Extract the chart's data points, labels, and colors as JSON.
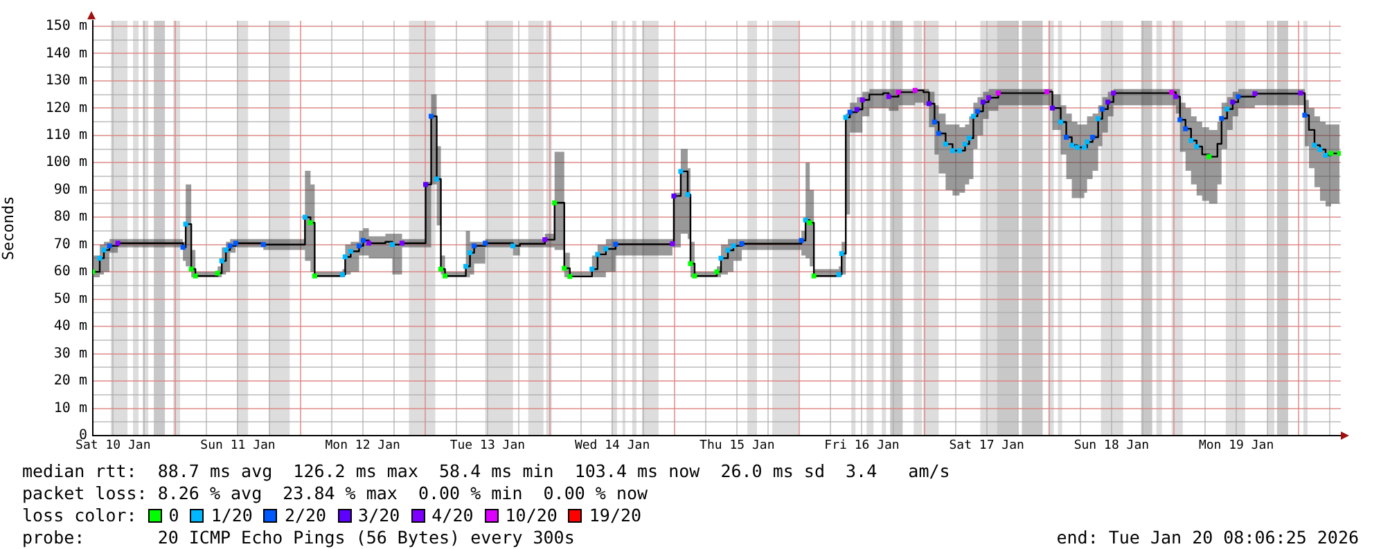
{
  "chart_data": {
    "type": "step",
    "ylabel": "Seconds",
    "legend_title": "loss color:",
    "legend": "bottom",
    "grid": true,
    "xlim": [
      "2026-01-10T08:06",
      "2026-01-20T08:06"
    ],
    "ylim": [
      0,
      152
    ],
    "yticks": [
      0,
      {
        "value": 5,
        "label": null
      },
      {
        "value": 10,
        "label": "10 m"
      },
      {
        "value": 15,
        "label": null
      },
      {
        "value": 20,
        "label": "20 m"
      },
      {
        "value": 25,
        "label": null
      },
      {
        "value": 30,
        "label": "30 m"
      },
      {
        "value": 35,
        "label": null
      },
      {
        "value": 40,
        "label": "40 m"
      },
      {
        "value": 45,
        "label": null
      },
      {
        "value": 50,
        "label": "50 m"
      },
      {
        "value": 55,
        "label": null
      },
      {
        "value": 60,
        "label": "60 m"
      },
      {
        "value": 65,
        "label": null
      },
      {
        "value": 70,
        "label": "70 m"
      },
      {
        "value": 75,
        "label": null
      },
      {
        "value": 80,
        "label": "80 m"
      },
      {
        "value": 85,
        "label": null
      },
      {
        "value": 90,
        "label": "90 m"
      },
      {
        "value": 95,
        "label": null
      },
      {
        "value": 100,
        "label": "100 m"
      },
      {
        "value": 105,
        "label": null
      },
      {
        "value": 110,
        "label": "110 m"
      },
      {
        "value": 115,
        "label": null
      },
      {
        "value": 120,
        "label": "120 m"
      },
      {
        "value": 125,
        "label": null
      },
      {
        "value": 130,
        "label": "130 m"
      },
      {
        "value": 135,
        "label": null
      },
      {
        "value": 140,
        "label": "140 m"
      },
      {
        "value": 145,
        "label": null
      },
      {
        "value": 150,
        "label": "150 m"
      }
    ],
    "xticks": [
      {
        "value": "2026-01-10T12:00",
        "label": "Sat 10 Jan"
      },
      {
        "value": "2026-01-10T18:00",
        "label": null
      },
      {
        "value": "2026-01-11T00:00",
        "label": null
      },
      {
        "value": "2026-01-11T06:00",
        "label": null
      },
      {
        "value": "2026-01-11T12:00",
        "label": "Sun 11 Jan"
      },
      {
        "value": "2026-01-11T18:00",
        "label": null
      },
      {
        "value": "2026-01-12T00:00",
        "label": null
      },
      {
        "value": "2026-01-12T06:00",
        "label": null
      },
      {
        "value": "2026-01-12T12:00",
        "label": "Mon 12 Jan"
      },
      {
        "value": "2026-01-12T18:00",
        "label": null
      },
      {
        "value": "2026-01-13T00:00",
        "label": null
      },
      {
        "value": "2026-01-13T06:00",
        "label": null
      },
      {
        "value": "2026-01-13T12:00",
        "label": "Tue 13 Jan"
      },
      {
        "value": "2026-01-13T18:00",
        "label": null
      },
      {
        "value": "2026-01-14T00:00",
        "label": null
      },
      {
        "value": "2026-01-14T06:00",
        "label": null
      },
      {
        "value": "2026-01-14T12:00",
        "label": "Wed 14 Jan"
      },
      {
        "value": "2026-01-14T18:00",
        "label": null
      },
      {
        "value": "2026-01-15T00:00",
        "label": null
      },
      {
        "value": "2026-01-15T06:00",
        "label": null
      },
      {
        "value": "2026-01-15T12:00",
        "label": "Thu 15 Jan"
      },
      {
        "value": "2026-01-15T18:00",
        "label": null
      },
      {
        "value": "2026-01-16T00:00",
        "label": null
      },
      {
        "value": "2026-01-16T06:00",
        "label": null
      },
      {
        "value": "2026-01-16T12:00",
        "label": "Fri 16 Jan"
      },
      {
        "value": "2026-01-16T18:00",
        "label": null
      },
      {
        "value": "2026-01-17T00:00",
        "label": null
      },
      {
        "value": "2026-01-17T06:00",
        "label": null
      },
      {
        "value": "2026-01-17T12:00",
        "label": "Sat 17 Jan"
      },
      {
        "value": "2026-01-17T18:00",
        "label": null
      },
      {
        "value": "2026-01-18T00:00",
        "label": null
      },
      {
        "value": "2026-01-18T06:00",
        "label": null
      },
      {
        "value": "2026-01-18T12:00",
        "label": "Sun 18 Jan"
      },
      {
        "value": "2026-01-18T18:00",
        "label": null
      },
      {
        "value": "2026-01-19T00:00",
        "label": null
      },
      {
        "value": "2026-01-19T06:00",
        "label": null
      },
      {
        "value": "2026-01-19T12:00",
        "label": "Mon 19 Jan"
      },
      {
        "value": "2026-01-19T18:00",
        "label": null
      },
      {
        "value": "2026-01-20T00:00",
        "label": null
      },
      {
        "value": "2026-01-20T06:00",
        "label": null
      }
    ],
    "x": [
      "2026-01-10T08:06",
      "2026-01-10T09:26",
      "2026-01-10T10:14",
      "2026-01-10T11:18",
      "2026-01-10T12:54",
      "2026-01-11T00:54",
      "2026-01-11T01:26",
      "2026-01-11T01:58",
      "2026-01-11T03:02",
      "2026-01-11T03:50",
      "2026-01-11T08:06",
      "2026-01-11T08:54",
      "2026-01-11T09:42",
      "2026-01-11T10:30",
      "2026-01-11T11:34",
      "2026-01-11T16:54",
      "2026-01-12T00:22",
      "2026-01-12T00:54",
      "2026-01-12T01:58",
      "2026-01-12T02:46",
      "2026-01-12T08:06",
      "2026-01-12T08:38",
      "2026-01-12T09:42",
      "2026-01-12T11:18",
      "2026-01-12T12:06",
      "2026-01-12T13:10",
      "2026-01-12T16:22",
      "2026-01-12T17:42",
      "2026-01-12T19:34",
      "2026-01-12T23:34",
      "2026-01-13T00:06",
      "2026-01-13T01:10",
      "2026-01-13T02:14",
      "2026-01-13T03:02",
      "2026-01-13T03:50",
      "2026-01-13T07:50",
      "2026-01-13T08:38",
      "2026-01-13T09:26",
      "2026-01-13T11:34",
      "2026-01-13T16:54",
      "2026-01-13T18:14",
      "2026-01-13T23:02",
      "2026-01-14T00:54",
      "2026-01-14T02:46",
      "2026-01-14T03:50",
      "2026-01-14T08:06",
      "2026-01-14T09:10",
      "2026-01-14T10:46",
      "2026-01-14T12:38",
      "2026-01-14T23:34",
      "2026-01-14T23:50",
      "2026-01-15T01:10",
      "2026-01-15T02:30",
      "2026-01-15T03:02",
      "2026-01-15T03:50",
      "2026-01-15T08:06",
      "2026-01-15T08:54",
      "2026-01-15T10:14",
      "2026-01-15T11:18",
      "2026-01-15T12:54",
      "2026-01-16T00:22",
      "2026-01-16T01:10",
      "2026-01-16T01:58",
      "2026-01-16T02:46",
      "2026-01-16T07:34",
      "2026-01-16T08:06",
      "2026-01-16T08:54",
      "2026-01-16T09:42",
      "2026-01-16T11:02",
      "2026-01-16T12:06",
      "2026-01-16T13:26",
      "2026-01-16T16:06",
      "2026-01-16T17:10",
      "2026-01-16T19:02",
      "2026-01-16T22:14",
      "2026-01-16T23:50",
      "2026-01-17T00:54",
      "2026-01-17T01:58",
      "2026-01-17T02:46",
      "2026-01-17T04:06",
      "2026-01-17T05:26",
      "2026-01-17T06:46",
      "2026-01-17T07:50",
      "2026-01-17T08:38",
      "2026-01-17T09:26",
      "2026-01-17T10:14",
      "2026-01-17T11:18",
      "2026-01-17T12:22",
      "2026-01-17T14:14",
      "2026-01-17T23:34",
      "2026-01-18T00:38",
      "2026-01-18T02:14",
      "2026-01-18T03:18",
      "2026-01-18T04:22",
      "2026-01-18T05:26",
      "2026-01-18T06:46",
      "2026-01-18T07:18",
      "2026-01-18T08:22",
      "2026-01-18T09:26",
      "2026-01-18T10:14",
      "2026-01-18T11:18",
      "2026-01-18T12:22",
      "2026-01-18T23:34",
      "2026-01-19T00:22",
      "2026-01-19T01:10",
      "2026-01-19T02:14",
      "2026-01-19T03:18",
      "2026-01-19T04:22",
      "2026-01-19T05:26",
      "2026-01-19T06:46",
      "2026-01-19T07:50",
      "2026-01-19T08:22",
      "2026-01-19T09:10",
      "2026-01-19T10:14",
      "2026-01-19T11:18",
      "2026-01-19T12:22",
      "2026-01-19T15:34",
      "2026-01-20T00:22",
      "2026-01-20T01:10",
      "2026-01-20T01:58",
      "2026-01-20T03:02",
      "2026-01-20T04:06",
      "2026-01-20T05:10",
      "2026-01-20T06:14",
      "2026-01-20T07:50"
    ],
    "series": [
      {
        "color": "#000000",
        "values": [
          60,
          65,
          68,
          69.5,
          70.5,
          70.5,
          69,
          77.5,
          61,
          58.5,
          59.5,
          64,
          68,
          69.5,
          70.5,
          70,
          70,
          80,
          78,
          58.5,
          59,
          65.5,
          67.5,
          69.5,
          71.5,
          70.5,
          71,
          70,
          70.5,
          70.5,
          92,
          117,
          94,
          61,
          58.5,
          62,
          67,
          69.5,
          70.5,
          69.5,
          70.3,
          71.8,
          85.3,
          61.3,
          58.3,
          61,
          66.4,
          68.4,
          70.1,
          70.3,
          87.8,
          96.8,
          88.3,
          63,
          58.5,
          60,
          65,
          67.9,
          69.5,
          70.3,
          71.5,
          79,
          78,
          58.5,
          59,
          66.7,
          116.6,
          118.5,
          119.5,
          123,
          125,
          125.5,
          124.2,
          125.8,
          126.5,
          125.8,
          121.6,
          114.9,
          110.7,
          106.8,
          104.4,
          104.4,
          106.8,
          109,
          117,
          118.8,
          122.2,
          123.8,
          125.5,
          126,
          120,
          114.9,
          109.3,
          106.4,
          105.6,
          105.6,
          107.6,
          109.3,
          116.1,
          119.6,
          122.2,
          125.5,
          125.8,
          124.2,
          115.7,
          112.4,
          108.1,
          105.9,
          103,
          102.2,
          102.2,
          106.9,
          116.2,
          119.6,
          122.2,
          124.2,
          125.3,
          125.5,
          117.4,
          112,
          106.4,
          104.8,
          102.7,
          103.4,
          103.4
        ],
        "lower": [
          58,
          59,
          60,
          67,
          69,
          69,
          64,
          62,
          58,
          58,
          58,
          59,
          60,
          67,
          69,
          68,
          68,
          64,
          60,
          58,
          58,
          59,
          60,
          66,
          66,
          65,
          65,
          59,
          69,
          69,
          69,
          92,
          77,
          59,
          58,
          58,
          59,
          63,
          69,
          66,
          69,
          69,
          68,
          58,
          58,
          58,
          58,
          60,
          66,
          69,
          69,
          74,
          72,
          58,
          58,
          58,
          59,
          60,
          64,
          68,
          66,
          65,
          62,
          58,
          58,
          59,
          81,
          111,
          111,
          117,
          120,
          120,
          119,
          121,
          122,
          121,
          113,
          103,
          96,
          90,
          88,
          89,
          92,
          94,
          105,
          110,
          116,
          119,
          121,
          121,
          112,
          103,
          94,
          87,
          87,
          89,
          94,
          97,
          106,
          111,
          117,
          121,
          121,
          118,
          104,
          97,
          92,
          88,
          86,
          85,
          85,
          92,
          105,
          112,
          117,
          120,
          121,
          121,
          106,
          98,
          91,
          86,
          84,
          85,
          85
        ],
        "upper": [
          66,
          70,
          71,
          72,
          72,
          72,
          71,
          92,
          68,
          60,
          62,
          69,
          71,
          72,
          72,
          72,
          72,
          97,
          92,
          60,
          61,
          70,
          71,
          75,
          76,
          73,
          74,
          74,
          72,
          72,
          93,
          125,
          106,
          66,
          60,
          75,
          71,
          71,
          72,
          72,
          72,
          74,
          104,
          67,
          60,
          66,
          70,
          72,
          72,
          72,
          89,
          105,
          98,
          71,
          60,
          62,
          70,
          72,
          72,
          72,
          75,
          100,
          90,
          61,
          62,
          71,
          118,
          122,
          124,
          126,
          127,
          127,
          127,
          127,
          127,
          127,
          126,
          121,
          118,
          114,
          114,
          113,
          114,
          117,
          122,
          124,
          126,
          127,
          127,
          127,
          125,
          121,
          118,
          115,
          114,
          114,
          117,
          118,
          121,
          124,
          126,
          127,
          127,
          127,
          122,
          120,
          117,
          115,
          113,
          112,
          112,
          115,
          122,
          124,
          126,
          127,
          127,
          127,
          123,
          120,
          117,
          115,
          114,
          114,
          114
        ]
      },
      {
        "type": "scatter",
        "name": "0",
        "color": "#00ff00",
        "marker": "square",
        "x": [
          "2026-01-10T08:06",
          "2026-01-11T03:02",
          "2026-01-11T03:50",
          "2026-01-11T08:06",
          "2026-01-12T01:58",
          "2026-01-12T02:46",
          "2026-01-13T03:02",
          "2026-01-13T03:50",
          "2026-01-14T00:54",
          "2026-01-14T02:46",
          "2026-01-14T03:50",
          "2026-01-15T03:02",
          "2026-01-15T03:50",
          "2026-01-15T08:06",
          "2026-01-16T01:58",
          "2026-01-16T02:46",
          "2026-01-19T06:46",
          "2026-01-20T06:14",
          "2026-01-20T07:50"
        ],
        "values": [
          60,
          61,
          58.5,
          59.5,
          78,
          58.5,
          61,
          58.5,
          85.3,
          61.3,
          58.3,
          63,
          58.5,
          60,
          78,
          58.5,
          102.2,
          103.4,
          103.4
        ]
      },
      {
        "type": "scatter",
        "name": "1/20",
        "color": "#00b8ff",
        "marker": "square",
        "x": [
          "2026-01-10T09:26",
          "2026-01-10T10:14",
          "2026-01-11T01:58",
          "2026-01-11T08:54",
          "2026-01-11T09:42",
          "2026-01-12T00:54",
          "2026-01-12T08:06",
          "2026-01-12T08:38",
          "2026-01-12T09:42",
          "2026-01-12T17:42",
          "2026-01-13T02:14",
          "2026-01-13T07:50",
          "2026-01-13T08:38",
          "2026-01-13T16:54",
          "2026-01-14T08:06",
          "2026-01-14T09:10",
          "2026-01-14T10:46",
          "2026-01-15T01:10",
          "2026-01-15T02:30",
          "2026-01-15T08:54",
          "2026-01-15T10:14",
          "2026-01-15T11:18",
          "2026-01-16T01:10",
          "2026-01-16T07:34",
          "2026-01-16T08:06",
          "2026-01-16T08:54",
          "2026-01-17T04:06",
          "2026-01-17T05:26",
          "2026-01-17T06:46",
          "2026-01-17T07:50",
          "2026-01-17T08:38",
          "2026-01-17T09:26",
          "2026-01-18T02:14",
          "2026-01-18T04:22",
          "2026-01-18T05:26",
          "2026-01-18T06:46",
          "2026-01-18T07:18",
          "2026-01-18T09:26",
          "2026-01-19T03:18",
          "2026-01-19T04:22",
          "2026-01-19T10:14",
          "2026-01-20T03:02",
          "2026-01-20T04:06",
          "2026-01-20T05:10"
        ],
        "values": [
          65,
          68,
          77.5,
          64,
          68,
          80,
          59,
          65.5,
          67.5,
          70,
          94,
          62,
          67,
          69.5,
          61,
          66.4,
          68.4,
          96.8,
          88.3,
          65,
          67.9,
          69.5,
          79,
          59,
          66.7,
          116.6,
          106.8,
          104.4,
          104.4,
          106.8,
          109,
          117,
          114.9,
          106.4,
          105.6,
          105.6,
          107.6,
          116.1,
          108.1,
          105.9,
          119.6,
          106.4,
          104.8,
          102.7
        ]
      },
      {
        "type": "scatter",
        "name": "2/20",
        "color": "#0059ff",
        "marker": "square",
        "x": [
          "2026-01-10T11:18",
          "2026-01-11T01:26",
          "2026-01-11T10:30",
          "2026-01-11T11:34",
          "2026-01-11T16:54",
          "2026-01-12T11:18",
          "2026-01-12T12:06",
          "2026-01-13T01:10",
          "2026-01-13T09:26",
          "2026-01-13T11:34",
          "2026-01-14T12:38",
          "2026-01-15T12:54",
          "2026-01-16T00:22",
          "2026-01-16T09:42",
          "2026-01-17T01:58",
          "2026-01-17T02:46",
          "2026-01-17T10:14",
          "2026-01-18T03:18",
          "2026-01-18T08:22",
          "2026-01-18T10:14",
          "2026-01-19T01:10",
          "2026-01-19T02:14",
          "2026-01-19T09:10",
          "2026-01-19T12:22",
          "2026-01-20T01:10"
        ],
        "values": [
          69.5,
          69,
          69.5,
          70.5,
          70,
          69.5,
          71.5,
          117,
          69.5,
          70.5,
          70.1,
          70.3,
          71.5,
          118.5,
          114.9,
          110.7,
          118.8,
          109.3,
          109.3,
          119.6,
          115.7,
          112.4,
          116.2,
          124.2,
          117.4
        ]
      },
      {
        "type": "scatter",
        "name": "3/20",
        "color": "#5e00ff",
        "marker": "square",
        "x": [
          "2026-01-13T00:06",
          "2026-01-14T23:50",
          "2026-01-16T11:02",
          "2026-01-17T00:54",
          "2026-01-17T11:18",
          "2026-01-18T00:38",
          "2026-01-18T11:18",
          "2026-01-19T11:18"
        ],
        "values": [
          92,
          87.8,
          119.5,
          121.6,
          122.2,
          120,
          122.2,
          122.2
        ]
      },
      {
        "type": "scatter",
        "name": "4/20",
        "color": "#7e00ff",
        "marker": "square",
        "x": [
          "2026-01-10T12:54",
          "2026-01-12T13:10",
          "2026-01-12T19:34",
          "2026-01-13T23:02",
          "2026-01-14T23:34",
          "2026-01-16T12:06",
          "2026-01-16T17:10",
          "2026-01-17T12:22",
          "2026-01-18T12:22",
          "2026-01-19T00:22",
          "2026-01-19T15:34",
          "2026-01-20T00:22"
        ],
        "values": [
          70.5,
          70.5,
          70.5,
          71.8,
          70.3,
          123,
          124.2,
          123.8,
          125.5,
          124.2,
          125.3,
          125.5
        ]
      },
      {
        "type": "scatter",
        "name": "10/20",
        "color": "#dd00ff",
        "marker": "square",
        "x": [
          "2026-01-16T19:02",
          "2026-01-16T22:14",
          "2026-01-17T14:14",
          "2026-01-17T23:34",
          "2026-01-18T23:34"
        ],
        "values": [
          125.8,
          126.5,
          125.5,
          126,
          125.8
        ]
      },
      {
        "type": "scatter",
        "name": "19/20",
        "color": "#ff0000",
        "marker": "square",
        "values": [
          null,
          null,
          null,
          null,
          null,
          null,
          null,
          null,
          null,
          null,
          null,
          null,
          null,
          null,
          null,
          null,
          null,
          null,
          null,
          null,
          null,
          null,
          null,
          null,
          null,
          null,
          null,
          null,
          null,
          null,
          null,
          null,
          null,
          null,
          null,
          null,
          null,
          null,
          null,
          null,
          null,
          null,
          null,
          null,
          null,
          null,
          null,
          null,
          null,
          null,
          null,
          null,
          null,
          null,
          null,
          null,
          null,
          null,
          null,
          null,
          null,
          null,
          null,
          null,
          null,
          null,
          null,
          null,
          null,
          null,
          null,
          null,
          null,
          null,
          null,
          null,
          null,
          null,
          null,
          null,
          null,
          null,
          null,
          null,
          null,
          null,
          null,
          null,
          null,
          null,
          null,
          null,
          null,
          null,
          null,
          null,
          null,
          null,
          null,
          null,
          null,
          null,
          null,
          null,
          null,
          null,
          null,
          null,
          null,
          null,
          null,
          null,
          null,
          null,
          null,
          null,
          null,
          null,
          null,
          null,
          null,
          null,
          null,
          null,
          null
        ]
      }
    ],
    "bands": [
      {
        "axis": "x",
        "from": "2026-01-10T11:34",
        "to": "2026-01-10T14:46",
        "color": "#dddddd"
      },
      {
        "axis": "x",
        "from": "2026-01-10T15:50",
        "to": "2026-01-10T16:54",
        "color": "#dddddd"
      },
      {
        "axis": "x",
        "from": "2026-01-10T17:42",
        "to": "2026-01-10T18:46",
        "color": "#dddddd"
      },
      {
        "axis": "x",
        "from": "2026-01-10T19:50",
        "to": "2026-01-10T21:58",
        "color": "#c8c8c8"
      },
      {
        "axis": "x",
        "from": "2026-01-10T23:34",
        "to": "2026-01-11T00:54",
        "color": "#dddddd"
      },
      {
        "axis": "x",
        "from": "2026-01-11T11:50",
        "to": "2026-01-11T13:58",
        "color": "#dddddd"
      },
      {
        "axis": "x",
        "from": "2026-01-11T17:58",
        "to": "2026-01-11T21:58",
        "color": "#dddddd"
      },
      {
        "axis": "x",
        "from": "2026-01-12T20:54",
        "to": "2026-01-13T01:58",
        "color": "#dddddd"
      },
      {
        "axis": "x",
        "from": "2026-01-13T11:34",
        "to": "2026-01-13T16:54",
        "color": "#dddddd"
      },
      {
        "axis": "x",
        "from": "2026-01-13T19:50",
        "to": "2026-01-13T22:46",
        "color": "#dddddd"
      },
      {
        "axis": "x",
        "from": "2026-01-13T23:18",
        "to": "2026-01-14T00:22",
        "color": "#dddddd"
      },
      {
        "axis": "x",
        "from": "2026-01-14T11:50",
        "to": "2026-01-14T12:54",
        "color": "#dddddd"
      },
      {
        "axis": "x",
        "from": "2026-01-14T13:58",
        "to": "2026-01-14T14:30",
        "color": "#dddddd"
      },
      {
        "axis": "x",
        "from": "2026-01-14T15:50",
        "to": "2026-01-14T16:38",
        "color": "#dddddd"
      },
      {
        "axis": "x",
        "from": "2026-01-14T17:42",
        "to": "2026-01-14T20:54",
        "color": "#dddddd"
      },
      {
        "axis": "x",
        "from": "2026-01-15T13:58",
        "to": "2026-01-15T15:50",
        "color": "#dddddd"
      },
      {
        "axis": "x",
        "from": "2026-01-15T18:46",
        "to": "2026-01-15T23:50",
        "color": "#dddddd"
      },
      {
        "axis": "x",
        "from": "2026-01-16T09:58",
        "to": "2026-01-16T10:46",
        "color": "#dddddd"
      },
      {
        "axis": "x",
        "from": "2026-01-16T12:54",
        "to": "2026-01-16T14:14",
        "color": "#dddddd"
      },
      {
        "axis": "x",
        "from": "2026-01-16T15:50",
        "to": "2026-01-16T16:38",
        "color": "#dddddd"
      },
      {
        "axis": "x",
        "from": "2026-01-16T17:26",
        "to": "2026-01-16T19:50",
        "color": "#c8c8c8"
      },
      {
        "axis": "x",
        "from": "2026-01-16T21:58",
        "to": "2026-01-16T23:34",
        "color": "#dddddd"
      },
      {
        "axis": "x",
        "from": "2026-01-16T23:50",
        "to": "2026-01-17T02:46",
        "color": "#dddddd"
      },
      {
        "axis": "x",
        "from": "2026-01-17T10:46",
        "to": "2026-01-17T13:58",
        "color": "#dddddd"
      },
      {
        "axis": "x",
        "from": "2026-01-17T13:58",
        "to": "2026-01-17T17:58",
        "color": "#c8c8c8"
      },
      {
        "axis": "x",
        "from": "2026-01-17T18:46",
        "to": "2026-01-17T22:46",
        "color": "#c8c8c8"
      },
      {
        "axis": "x",
        "from": "2026-01-17T23:50",
        "to": "2026-01-18T00:54",
        "color": "#dddddd"
      },
      {
        "axis": "x",
        "from": "2026-01-18T01:42",
        "to": "2026-01-18T02:30",
        "color": "#dddddd"
      },
      {
        "axis": "x",
        "from": "2026-01-18T09:58",
        "to": "2026-01-18T14:14",
        "color": "#dddddd"
      },
      {
        "axis": "x",
        "from": "2026-01-18T17:42",
        "to": "2026-01-18T19:50",
        "color": "#c8c8c8"
      },
      {
        "axis": "x",
        "from": "2026-01-18T20:38",
        "to": "2026-01-18T21:42",
        "color": "#dddddd"
      },
      {
        "axis": "x",
        "from": "2026-01-18T23:34",
        "to": "2026-01-19T01:42",
        "color": "#dddddd"
      },
      {
        "axis": "x",
        "from": "2026-01-19T09:58",
        "to": "2026-01-19T13:42",
        "color": "#dddddd"
      },
      {
        "axis": "x",
        "from": "2026-01-19T17:58",
        "to": "2026-01-19T19:18",
        "color": "#dddddd"
      },
      {
        "axis": "x",
        "from": "2026-01-19T19:50",
        "to": "2026-01-19T21:58",
        "color": "#c8c8c8"
      },
      {
        "axis": "x",
        "from": "2026-01-20T00:54",
        "to": "2026-01-20T01:42",
        "color": "#dddddd"
      }
    ],
    "annotations": [
      "median rtt:  88.7 ms avg  126.2 ms max  58.4 ms min  103.4 ms now  26.0 ms sd  3.4   am/s",
      "packet loss: 8.26 % avg  23.84 % max  0.00 % min  0.00 % now",
      "probe:       20 ICMP Echo Pings (56 Bytes) every 300s",
      "end: Tue Jan 20 08:06:25 2026"
    ]
  }
}
